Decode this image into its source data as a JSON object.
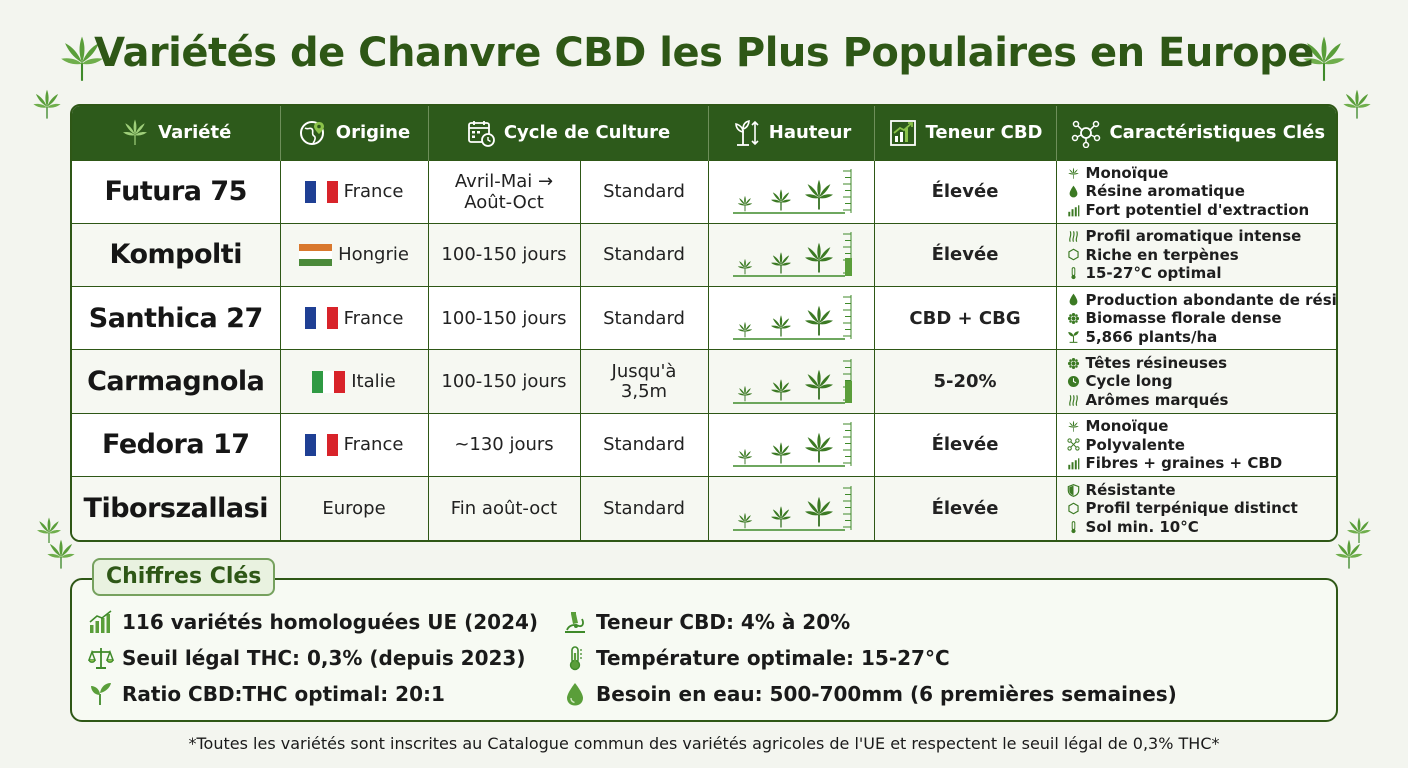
{
  "title": "Variétés de Chanvre CBD les Plus Populaires en Europe",
  "headers": {
    "variete": "Variété",
    "origine": "Origine",
    "cycle": "Cycle de Culture",
    "hauteur": "Hauteur",
    "teneur": "Teneur CBD",
    "caracteristiques": "Caractéristiques Clés"
  },
  "rows": [
    {
      "name": "Futura 75",
      "country": "France",
      "cycle1": "Avril-Mai →",
      "cycle2": "Août-Oct",
      "stature": "Standard",
      "cbd": "Élevée",
      "features": [
        "Monoïque",
        "Résine aromatique",
        "Fort potentiel d'extraction"
      ]
    },
    {
      "name": "Kompolti",
      "country": "Hongrie",
      "cycle1": "100-150 jours",
      "cycle2": "",
      "stature": "Standard",
      "cbd": "Élevée",
      "features": [
        "Profil aromatique intense",
        "Riche en terpènes",
        "15-27°C optimal"
      ]
    },
    {
      "name": "Santhica 27",
      "country": "France",
      "cycle1": "100-150 jours",
      "cycle2": "",
      "stature": "Standard",
      "cbd": "CBD + CBG",
      "features": [
        "Production abondante de résine",
        "Biomasse florale dense",
        "5,866 plants/ha"
      ]
    },
    {
      "name": "Carmagnola",
      "country": "Italie",
      "cycle1": "100-150 jours",
      "cycle2": "",
      "stature": "Jusqu'à 3,5m",
      "cbd": "5-20%",
      "features": [
        "Têtes résineuses",
        "Cycle long",
        "Arômes marqués"
      ]
    },
    {
      "name": "Fedora 17",
      "country": "France",
      "cycle1": "~130 jours",
      "cycle2": "",
      "stature": "Standard",
      "cbd": "Élevée",
      "features": [
        "Monoïque",
        "Polyvalente",
        "Fibres + graines + CBD"
      ]
    },
    {
      "name": "Tiborszallasi",
      "country": "Europe",
      "cycle1": "Fin août-oct",
      "cycle2": "",
      "stature": "Standard",
      "cbd": "Élevée",
      "features": [
        "Résistante",
        "Profil terpénique distinct",
        "Sol min. 10°C"
      ]
    }
  ],
  "key_figures": {
    "title": "Chiffres Clés",
    "items": [
      "116 variétés homologuées UE (2024)",
      "Seuil légal THC: 0,3% (depuis 2023)",
      "Ratio CBD:THC optimal: 20:1",
      "Teneur CBD: 4% à 20%",
      "Température optimale: 15-27°C",
      "Besoin en eau: 500-700mm (6 premières semaines)"
    ]
  },
  "footnote": "*Toutes les variétés sont inscrites au Catalogue commun des variétés agricoles de l'UE et respectent le seuil légal de 0,3% THC*",
  "colors": {
    "header_green": "#2d5a1b",
    "title_green": "#2e5716",
    "leaf_green": "#3f8a2a",
    "france": [
      "#1f3f94",
      "#ffffff",
      "#d8232a"
    ],
    "hongrie": [
      "#d9782e",
      "#ffffff",
      "#4b8a3a"
    ],
    "italie": [
      "#2f9a43",
      "#ffffff",
      "#d8232a"
    ]
  },
  "icons": {
    "header": [
      "leaf-icon",
      "globe-pin-icon",
      "calendar-clock-icon",
      "plant-height-icon",
      "bar-chart-icon",
      "network-icon"
    ],
    "key": [
      "bar-chart-icon",
      "scales-icon",
      "sprout-icon",
      "microscope-icon",
      "thermometer-icon",
      "water-drop-icon"
    ]
  }
}
